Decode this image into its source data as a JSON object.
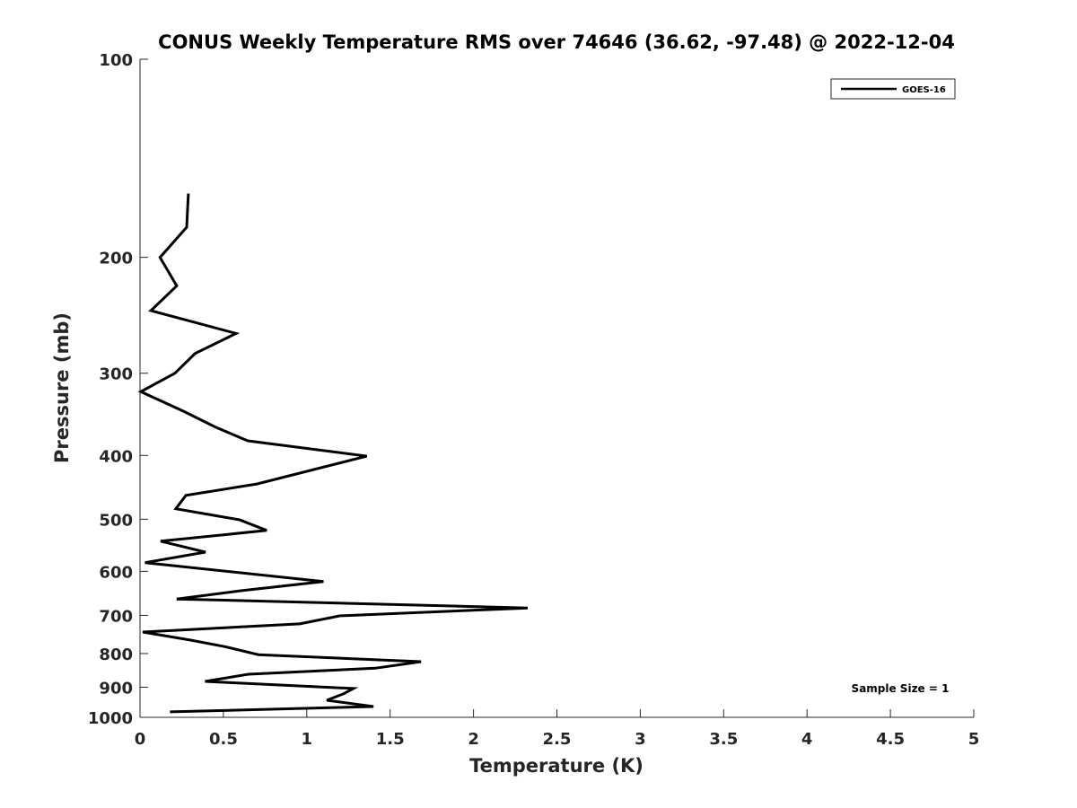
{
  "chart_data": {
    "type": "line",
    "title": "CONUS Weekly Temperature RMS over 74646 (36.62, -97.48) @ 2022-12-04",
    "xlabel": "Temperature (K)",
    "ylabel": "Pressure (mb)",
    "xlim": [
      0,
      5
    ],
    "ylim": [
      100,
      1000
    ],
    "yscale": "log",
    "xticks": [
      "0",
      "0.5",
      "1",
      "1.5",
      "2",
      "2.5",
      "3",
      "3.5",
      "4",
      "4.5",
      "5"
    ],
    "yticks": [
      "100",
      "200",
      "300",
      "400",
      "500",
      "600",
      "700",
      "800",
      "900",
      "1000"
    ],
    "legend": {
      "placement": "top-right",
      "entries": [
        "GOES-16"
      ]
    },
    "annotation": "Sample Size = 1",
    "series": [
      {
        "name": "GOES-16",
        "color": "#000000",
        "points": [
          [
            0.29,
            160
          ],
          [
            0.28,
            180
          ],
          [
            0.12,
            200
          ],
          [
            0.22,
            221
          ],
          [
            0.065,
            241
          ],
          [
            0.576,
            261
          ],
          [
            0.33,
            280
          ],
          [
            0.21,
            300
          ],
          [
            0.005,
            320
          ],
          [
            0.264,
            343
          ],
          [
            0.45,
            362
          ],
          [
            0.646,
            380
          ],
          [
            1.36,
            401
          ],
          [
            0.7,
            442
          ],
          [
            0.275,
            460
          ],
          [
            0.215,
            482
          ],
          [
            0.597,
            501
          ],
          [
            0.76,
            520
          ],
          [
            0.124,
            540
          ],
          [
            0.393,
            561
          ],
          [
            0.03,
            582
          ],
          [
            1.1,
            622
          ],
          [
            0.61,
            642
          ],
          [
            0.22,
            661
          ],
          [
            2.325,
            682
          ],
          [
            1.2,
            701
          ],
          [
            0.958,
            721
          ],
          [
            0.016,
            742
          ],
          [
            0.3,
            763
          ],
          [
            0.51,
            781
          ],
          [
            0.71,
            803
          ],
          [
            1.685,
            823
          ],
          [
            1.41,
            842
          ],
          [
            0.65,
            860
          ],
          [
            0.39,
            882
          ],
          [
            1.28,
            904
          ],
          [
            1.22,
            921
          ],
          [
            1.12,
            942
          ],
          [
            1.4,
            963
          ],
          [
            0.18,
            981
          ]
        ]
      }
    ]
  }
}
